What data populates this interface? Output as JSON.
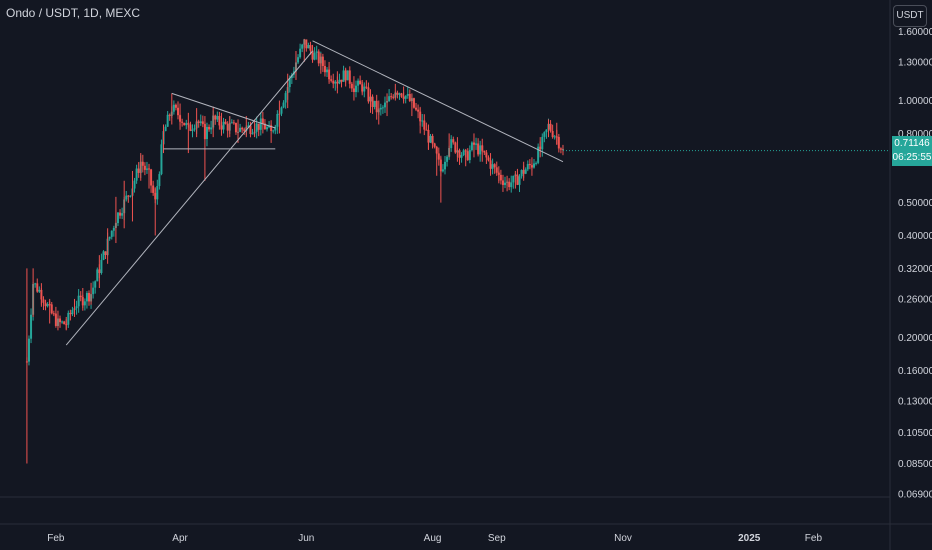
{
  "header": {
    "title": "Ondo / USDT, 1D, MEXC"
  },
  "toolbar": {
    "currency": "USDT"
  },
  "price_tag": {
    "price": "0.71146",
    "countdown": "06:25:55"
  },
  "colors": {
    "background": "#131722",
    "up": "#26a69a",
    "down": "#ef5350",
    "line": "#b2b5be",
    "grid": "#2a2e39"
  },
  "chart_data": {
    "type": "candlestick",
    "title": "Ondo / USDT, 1D, MEXC",
    "y_scale": "log",
    "ylim": [
      0.062,
      1.8
    ],
    "y_ticks": [
      "1.60000",
      "1.30000",
      "1.00000",
      "0.80000",
      "0.50000",
      "0.40000",
      "0.32000",
      "0.26000",
      "0.20000",
      "0.16000",
      "0.13000",
      "0.10500",
      "0.08500",
      "0.06900"
    ],
    "x_ticks": [
      "Feb",
      "Apr",
      "Jun",
      "Aug",
      "Sep",
      "Nov",
      "2025",
      "Feb"
    ],
    "x_tick_dates": [
      "2024-02-01",
      "2024-04-01",
      "2024-06-01",
      "2024-08-01",
      "2024-09-01",
      "2024-11-01",
      "2025-01-01",
      "2025-02-01"
    ],
    "xlim": [
      "2024-01-05",
      "2025-03-10"
    ],
    "grid": false,
    "price_path": [
      [
        "2024-01-18",
        0.085,
        0.17,
        0.32
      ],
      [
        "2024-01-21",
        0.23,
        0.29,
        0.32
      ],
      [
        "2024-01-25",
        0.25,
        0.27,
        0.28
      ],
      [
        "2024-01-29",
        0.22,
        0.24,
        0.26
      ],
      [
        "2024-02-02",
        0.21,
        0.22,
        0.24
      ],
      [
        "2024-02-06",
        0.21,
        0.22,
        0.23
      ],
      [
        "2024-02-10",
        0.23,
        0.25,
        0.26
      ],
      [
        "2024-02-14",
        0.24,
        0.26,
        0.28
      ],
      [
        "2024-02-18",
        0.25,
        0.27,
        0.29
      ],
      [
        "2024-02-22",
        0.28,
        0.32,
        0.35
      ],
      [
        "2024-02-26",
        0.33,
        0.38,
        0.42
      ],
      [
        "2024-03-01",
        0.38,
        0.45,
        0.52
      ],
      [
        "2024-03-05",
        0.42,
        0.5,
        0.58
      ],
      [
        "2024-03-09",
        0.44,
        0.56,
        0.62
      ],
      [
        "2024-03-13",
        0.58,
        0.66,
        0.7
      ],
      [
        "2024-03-17",
        0.55,
        0.6,
        0.64
      ],
      [
        "2024-03-20",
        0.4,
        0.5,
        0.55
      ],
      [
        "2024-03-24",
        0.7,
        0.8,
        0.85
      ],
      [
        "2024-03-28",
        0.85,
        0.95,
        1.05
      ],
      [
        "2024-04-01",
        0.82,
        0.9,
        0.98
      ],
      [
        "2024-04-05",
        0.7,
        0.82,
        0.92
      ],
      [
        "2024-04-09",
        0.78,
        0.88,
        0.95
      ],
      [
        "2024-04-13",
        0.58,
        0.8,
        0.9
      ],
      [
        "2024-04-17",
        0.78,
        0.88,
        0.96
      ],
      [
        "2024-04-21",
        0.8,
        0.85,
        0.92
      ],
      [
        "2024-04-25",
        0.78,
        0.84,
        0.9
      ],
      [
        "2024-04-29",
        0.75,
        0.82,
        0.88
      ],
      [
        "2024-05-03",
        0.78,
        0.83,
        0.9
      ],
      [
        "2024-05-07",
        0.78,
        0.84,
        0.88
      ],
      [
        "2024-05-11",
        0.8,
        0.85,
        0.88
      ],
      [
        "2024-05-15",
        0.75,
        0.8,
        0.85
      ],
      [
        "2024-05-19",
        0.8,
        0.95,
        1.0
      ],
      [
        "2024-05-23",
        0.95,
        1.1,
        1.2
      ],
      [
        "2024-05-27",
        1.15,
        1.3,
        1.4
      ],
      [
        "2024-05-31",
        1.3,
        1.48,
        1.52
      ],
      [
        "2024-06-04",
        1.3,
        1.38,
        1.45
      ],
      [
        "2024-06-08",
        1.2,
        1.3,
        1.38
      ],
      [
        "2024-06-12",
        1.12,
        1.2,
        1.3
      ],
      [
        "2024-06-16",
        1.05,
        1.15,
        1.22
      ],
      [
        "2024-06-20",
        1.1,
        1.2,
        1.25
      ],
      [
        "2024-06-24",
        1.0,
        1.1,
        1.18
      ],
      [
        "2024-06-28",
        1.05,
        1.1,
        1.15
      ],
      [
        "2024-07-02",
        0.92,
        1.0,
        1.08
      ],
      [
        "2024-07-06",
        0.85,
        0.92,
        1.0
      ],
      [
        "2024-07-10",
        0.9,
        0.98,
        1.05
      ],
      [
        "2024-07-14",
        1.0,
        1.08,
        1.12
      ],
      [
        "2024-07-18",
        0.98,
        1.05,
        1.1
      ],
      [
        "2024-07-22",
        0.9,
        0.98,
        1.05
      ],
      [
        "2024-07-26",
        0.8,
        0.88,
        0.95
      ],
      [
        "2024-07-30",
        0.72,
        0.78,
        0.85
      ],
      [
        "2024-08-03",
        0.6,
        0.68,
        0.72
      ],
      [
        "2024-08-05",
        0.5,
        0.62,
        0.68
      ],
      [
        "2024-08-09",
        0.68,
        0.75,
        0.8
      ],
      [
        "2024-08-13",
        0.66,
        0.72,
        0.78
      ],
      [
        "2024-08-17",
        0.64,
        0.68,
        0.72
      ],
      [
        "2024-08-21",
        0.68,
        0.74,
        0.8
      ],
      [
        "2024-08-25",
        0.66,
        0.7,
        0.74
      ],
      [
        "2024-08-29",
        0.6,
        0.65,
        0.7
      ],
      [
        "2024-09-02",
        0.57,
        0.6,
        0.64
      ],
      [
        "2024-09-06",
        0.54,
        0.57,
        0.6
      ],
      [
        "2024-09-10",
        0.55,
        0.58,
        0.62
      ],
      [
        "2024-09-14",
        0.58,
        0.62,
        0.66
      ],
      [
        "2024-09-18",
        0.6,
        0.65,
        0.68
      ],
      [
        "2024-09-22",
        0.68,
        0.72,
        0.78
      ],
      [
        "2024-09-26",
        0.78,
        0.84,
        0.88
      ],
      [
        "2024-09-30",
        0.74,
        0.78,
        0.86
      ],
      [
        "2024-10-03",
        0.69,
        0.71,
        0.74
      ]
    ],
    "price_path_fields": [
      "date",
      "low",
      "close",
      "high"
    ],
    "trendlines": [
      {
        "from": [
          "2024-02-06",
          0.19
        ],
        "to": [
          "2024-06-04",
          1.4
        ]
      },
      {
        "from": [
          "2024-06-04",
          1.5
        ],
        "to": [
          "2024-10-03",
          0.66
        ]
      },
      {
        "from": [
          "2024-03-28",
          1.05
        ],
        "to": [
          "2024-05-17",
          0.83
        ]
      },
      {
        "from": [
          "2024-03-24",
          0.72
        ],
        "to": [
          "2024-05-17",
          0.72
        ]
      }
    ]
  }
}
